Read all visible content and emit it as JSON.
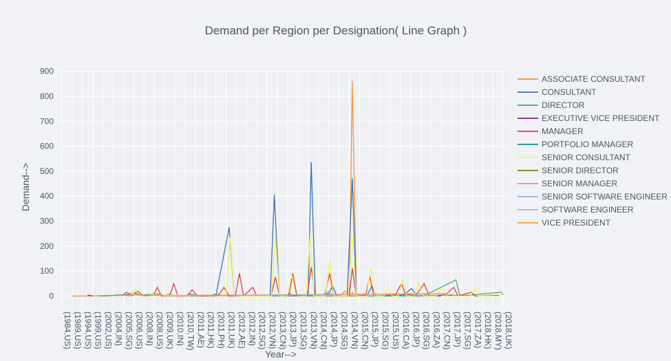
{
  "chart_data": {
    "type": "line",
    "title": "Demand per Region per Designation( Line Graph )",
    "xlabel": "Year-->",
    "ylabel": "Demand-->",
    "ylim": [
      -40,
      910
    ],
    "yticks": [
      0,
      100,
      200,
      300,
      400,
      500,
      600,
      700,
      800,
      900
    ],
    "legend_position": "right",
    "categories": [
      "(1984,US)",
      "(1989,US)",
      "(1994,US)",
      "(1999,US)",
      "(2002,US)",
      "(2004,IN)",
      "(2005,SG)",
      "(2006,US)",
      "(2008,IN)",
      "(2008,US)",
      "(2009,UK)",
      "(2010,IN)",
      "(2010,TW)",
      "(2011,AE)",
      "(2011,HK)",
      "(2011,PH)",
      "(2011,UK)",
      "(2012,AE)",
      "(2012,IN)",
      "(2012,SG)",
      "(2012,VN)",
      "(2013,CN)",
      "(2013,JP)",
      "(2013,SG)",
      "(2013,VN)",
      "(2014,CN)",
      "(2014,JP)",
      "(2014,SG)",
      "(2014,VN)",
      "(2015,CN)",
      "(2015,JP)",
      "(2015,SG)",
      "(2015,US)",
      "(2016,CA)",
      "(2016,JP)",
      "(2016,SG)",
      "(2016,ZA)",
      "(2017,CN)",
      "(2017,JP)",
      "(2017,SG)",
      "(2017,ZA)",
      "(2018,HK)",
      "(2018,MY)",
      "(2018,UK)"
    ],
    "series": [
      {
        "name": "ASSOCIATE CONSULTANT",
        "color": "#f0953a",
        "values": [
          {
            "x": 1,
            "y": 0
          },
          {
            "x": 2.5,
            "y": 0
          },
          {
            "x": 7.5,
            "y": 5
          },
          {
            "x": 8.2,
            "y": 2
          },
          {
            "x": 23.7,
            "y": 5
          },
          {
            "x": 27.2,
            "y": 4
          },
          {
            "x": 27.6,
            "y": 20
          },
          {
            "x": 28,
            "y": 5
          },
          {
            "x": 28.3,
            "y": 860
          },
          {
            "x": 28.7,
            "y": 5
          },
          {
            "x": 29.5,
            "y": 0
          },
          {
            "x": 34,
            "y": 5
          },
          {
            "x": 35.4,
            "y": 3
          },
          {
            "x": 40.3,
            "y": 3
          }
        ]
      },
      {
        "name": "CONSULTANT",
        "color": "#3a72b8",
        "values": [
          {
            "x": 12.5,
            "y": 0
          },
          {
            "x": 15,
            "y": 0
          },
          {
            "x": 16.3,
            "y": 275
          },
          {
            "x": 16.8,
            "y": 0
          },
          {
            "x": 18.2,
            "y": 2
          },
          {
            "x": 20.3,
            "y": 0
          },
          {
            "x": 20.7,
            "y": 405
          },
          {
            "x": 21.2,
            "y": 0
          },
          {
            "x": 22.3,
            "y": 5
          },
          {
            "x": 24,
            "y": 0
          },
          {
            "x": 24.3,
            "y": 535
          },
          {
            "x": 24.7,
            "y": 0
          },
          {
            "x": 26,
            "y": 10
          },
          {
            "x": 26.4,
            "y": 40
          },
          {
            "x": 26.8,
            "y": 0
          },
          {
            "x": 27.8,
            "y": 0
          },
          {
            "x": 28.3,
            "y": 470
          },
          {
            "x": 28.7,
            "y": 0
          },
          {
            "x": 29.8,
            "y": 5
          },
          {
            "x": 30.2,
            "y": 40
          },
          {
            "x": 30.6,
            "y": 0
          },
          {
            "x": 32.3,
            "y": 0
          },
          {
            "x": 33.3,
            "y": 5
          },
          {
            "x": 34.1,
            "y": 30
          },
          {
            "x": 34.6,
            "y": 0
          },
          {
            "x": 36.3,
            "y": 0
          },
          {
            "x": 37,
            "y": 0
          }
        ]
      },
      {
        "name": "DIRECTOR",
        "color": "#4aab6a",
        "values": [
          {
            "x": 3.6,
            "y": 0
          },
          {
            "x": 4.3,
            "y": 0
          },
          {
            "x": 5.6,
            "y": 5
          },
          {
            "x": 6.3,
            "y": 5
          },
          {
            "x": 7,
            "y": 15
          },
          {
            "x": 7.5,
            "y": 2
          },
          {
            "x": 8.3,
            "y": 5
          },
          {
            "x": 9.4,
            "y": 8
          },
          {
            "x": 10,
            "y": 3
          },
          {
            "x": 10.5,
            "y": 8
          },
          {
            "x": 11,
            "y": 0
          },
          {
            "x": 11.8,
            "y": 0
          },
          {
            "x": 12.5,
            "y": 8
          },
          {
            "x": 13.5,
            "y": 0
          },
          {
            "x": 14.4,
            "y": 0
          },
          {
            "x": 15,
            "y": 8
          },
          {
            "x": 15.6,
            "y": 0
          },
          {
            "x": 34.9,
            "y": 0
          },
          {
            "x": 35.3,
            "y": 2
          },
          {
            "x": 38.2,
            "y": 60
          },
          {
            "x": 38.4,
            "y": 65
          },
          {
            "x": 38.8,
            "y": 0
          },
          {
            "x": 42.8,
            "y": 15
          },
          {
            "x": 43,
            "y": 5
          }
        ]
      },
      {
        "name": "EXECUTIVE VICE PRESIDENT",
        "color": "#8b1a8b",
        "values": [
          {
            "x": 2.5,
            "y": 3
          },
          {
            "x": 3,
            "y": 0
          }
        ]
      },
      {
        "name": "MANAGER",
        "color": "#d94048",
        "values": [
          {
            "x": 5.8,
            "y": 0
          },
          {
            "x": 6.3,
            "y": 15
          },
          {
            "x": 6.8,
            "y": 0
          },
          {
            "x": 7.4,
            "y": 20
          },
          {
            "x": 7.9,
            "y": 0
          },
          {
            "x": 8.5,
            "y": 3
          },
          {
            "x": 8.9,
            "y": 2
          },
          {
            "x": 9.3,
            "y": 35
          },
          {
            "x": 9.7,
            "y": 0
          },
          {
            "x": 10.5,
            "y": 0
          },
          {
            "x": 10.9,
            "y": 50
          },
          {
            "x": 11.3,
            "y": 0
          },
          {
            "x": 12.2,
            "y": 0
          },
          {
            "x": 12.7,
            "y": 25
          },
          {
            "x": 13.2,
            "y": 0
          },
          {
            "x": 15.2,
            "y": 0
          },
          {
            "x": 15.8,
            "y": 35
          },
          {
            "x": 16.3,
            "y": 0
          },
          {
            "x": 16.9,
            "y": 0
          },
          {
            "x": 17.3,
            "y": 90
          },
          {
            "x": 17.7,
            "y": 0
          },
          {
            "x": 18.6,
            "y": 35
          },
          {
            "x": 19,
            "y": 0
          },
          {
            "x": 20.4,
            "y": 5
          },
          {
            "x": 20.8,
            "y": 75
          },
          {
            "x": 21.2,
            "y": 0
          },
          {
            "x": 22.1,
            "y": 0
          },
          {
            "x": 22.5,
            "y": 90
          },
          {
            "x": 22.9,
            "y": 0
          },
          {
            "x": 23.9,
            "y": 0
          },
          {
            "x": 24.3,
            "y": 115
          },
          {
            "x": 24.7,
            "y": 0
          },
          {
            "x": 25.6,
            "y": 0
          },
          {
            "x": 26.1,
            "y": 90
          },
          {
            "x": 26.5,
            "y": 0
          },
          {
            "x": 28,
            "y": 0
          },
          {
            "x": 28.3,
            "y": 110
          },
          {
            "x": 28.7,
            "y": 0
          },
          {
            "x": 29.6,
            "y": 0
          },
          {
            "x": 30,
            "y": 80
          },
          {
            "x": 30.4,
            "y": 0
          },
          {
            "x": 32.5,
            "y": 5
          },
          {
            "x": 33.1,
            "y": 50
          },
          {
            "x": 33.5,
            "y": 5
          },
          {
            "x": 34.5,
            "y": 3
          },
          {
            "x": 35.3,
            "y": 50
          },
          {
            "x": 35.8,
            "y": 0
          },
          {
            "x": 37.4,
            "y": 5
          },
          {
            "x": 38.2,
            "y": 35
          },
          {
            "x": 38.6,
            "y": 0
          },
          {
            "x": 39.9,
            "y": 15
          },
          {
            "x": 40.3,
            "y": 0
          },
          {
            "x": 42.6,
            "y": 3
          }
        ]
      },
      {
        "name": "PORTFOLIO MANAGER",
        "color": "#178c8c",
        "values": [
          {
            "x": 37.4,
            "y": 0
          },
          {
            "x": 37.9,
            "y": 5
          },
          {
            "x": 38.3,
            "y": 0
          }
        ]
      },
      {
        "name": "SENIOR CONSULTANT",
        "color": "#f4f35a",
        "values": [
          {
            "x": 6.6,
            "y": 0
          },
          {
            "x": 7.2,
            "y": 25
          },
          {
            "x": 7.6,
            "y": 0
          },
          {
            "x": 8.3,
            "y": 0
          },
          {
            "x": 8.8,
            "y": 5
          },
          {
            "x": 16,
            "y": 0
          },
          {
            "x": 16.4,
            "y": 235
          },
          {
            "x": 16.8,
            "y": 0
          },
          {
            "x": 20.4,
            "y": 0
          },
          {
            "x": 20.8,
            "y": 240
          },
          {
            "x": 21.2,
            "y": 0
          },
          {
            "x": 22,
            "y": 0
          },
          {
            "x": 22.4,
            "y": 85
          },
          {
            "x": 22.8,
            "y": 0
          },
          {
            "x": 23.8,
            "y": 0
          },
          {
            "x": 24.2,
            "y": 245
          },
          {
            "x": 24.6,
            "y": 0
          },
          {
            "x": 25.7,
            "y": 0
          },
          {
            "x": 26.1,
            "y": 140
          },
          {
            "x": 26.5,
            "y": 0
          },
          {
            "x": 27.9,
            "y": 0
          },
          {
            "x": 28.3,
            "y": 240
          },
          {
            "x": 28.7,
            "y": 0
          },
          {
            "x": 29.7,
            "y": 0
          },
          {
            "x": 30.1,
            "y": 115
          },
          {
            "x": 30.5,
            "y": 0
          },
          {
            "x": 31.4,
            "y": 0
          },
          {
            "x": 31.8,
            "y": 35
          },
          {
            "x": 32.2,
            "y": 0
          },
          {
            "x": 32.8,
            "y": 0
          },
          {
            "x": 33.2,
            "y": 65
          },
          {
            "x": 33.6,
            "y": 0
          },
          {
            "x": 34.3,
            "y": 0
          },
          {
            "x": 34.8,
            "y": 55
          },
          {
            "x": 35.2,
            "y": 0
          },
          {
            "x": 36.5,
            "y": 0
          },
          {
            "x": 37,
            "y": 30
          },
          {
            "x": 37.5,
            "y": 0
          },
          {
            "x": 39.8,
            "y": 0
          },
          {
            "x": 40.2,
            "y": 30
          },
          {
            "x": 40.6,
            "y": 0
          },
          {
            "x": 42.7,
            "y": 0
          },
          {
            "x": 43,
            "y": 20
          }
        ]
      },
      {
        "name": "SENIOR DIRECTOR",
        "color": "#7a7a1a",
        "values": [
          {
            "x": 21.8,
            "y": 0
          },
          {
            "x": 22.2,
            "y": 10
          },
          {
            "x": 22.5,
            "y": 0
          },
          {
            "x": 24,
            "y": 5
          },
          {
            "x": 24.4,
            "y": 0
          }
        ]
      },
      {
        "name": "SENIOR MANAGER",
        "color": "#f08a80",
        "values": [
          {
            "x": 5.2,
            "y": 0
          },
          {
            "x": 5.8,
            "y": 5
          },
          {
            "x": 6.5,
            "y": 0
          },
          {
            "x": 7.3,
            "y": 10
          },
          {
            "x": 8,
            "y": 0
          },
          {
            "x": 9.5,
            "y": 5
          },
          {
            "x": 10,
            "y": 0
          },
          {
            "x": 37.3,
            "y": 10
          },
          {
            "x": 37.7,
            "y": 0
          }
        ]
      },
      {
        "name": "SENIOR SOFTWARE ENGINEER",
        "color": "#8ab4e0",
        "values": [
          {
            "x": 16.6,
            "y": 5
          },
          {
            "x": 17,
            "y": 0
          },
          {
            "x": 17.6,
            "y": 3
          },
          {
            "x": 25.6,
            "y": 5
          },
          {
            "x": 26,
            "y": 20
          },
          {
            "x": 26.4,
            "y": 0
          }
        ]
      },
      {
        "name": "SOFTWARE ENGINEER",
        "color": "#9bb8d8",
        "values": [
          {
            "x": 34.2,
            "y": 0
          },
          {
            "x": 34.6,
            "y": 5
          },
          {
            "x": 35,
            "y": 0
          }
        ]
      },
      {
        "name": "VICE PRESIDENT",
        "color": "#f0a030",
        "values": [
          {
            "x": 28.1,
            "y": 0
          },
          {
            "x": 28.3,
            "y": 15
          },
          {
            "x": 28.5,
            "y": 0
          }
        ]
      }
    ]
  }
}
